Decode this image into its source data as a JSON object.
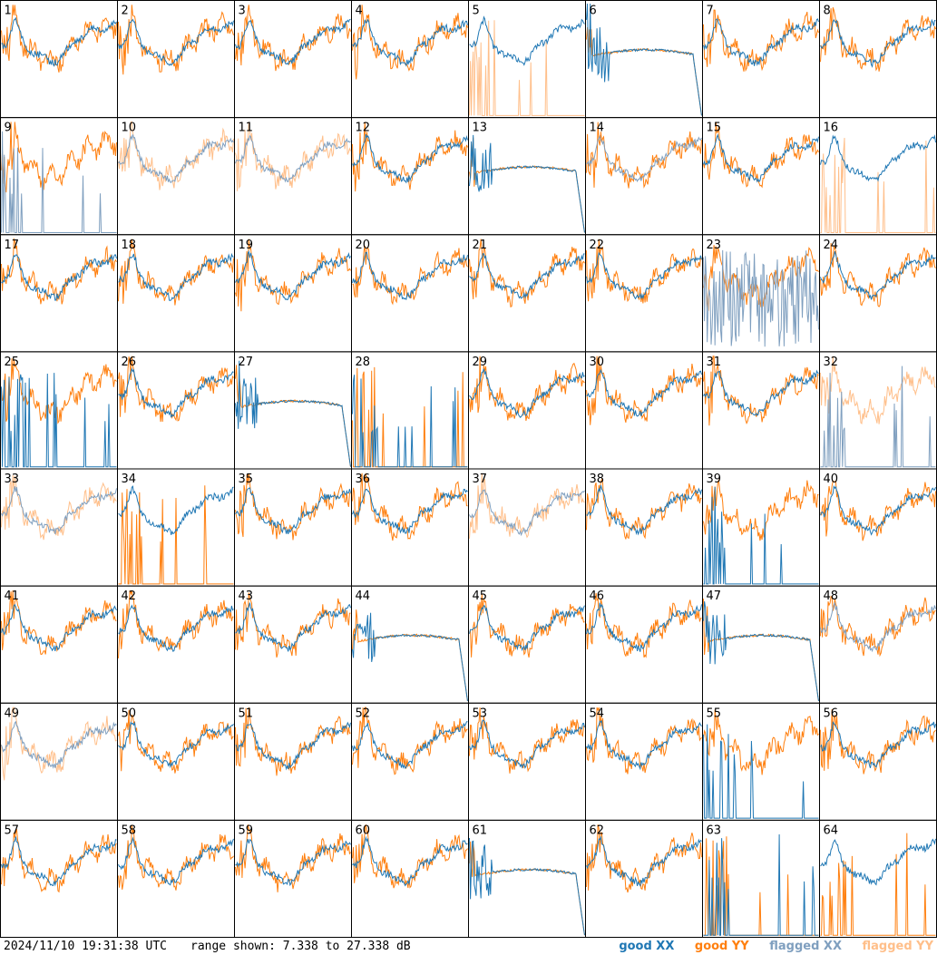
{
  "timestamp": "2024/11/10 19:31:38 UTC",
  "range_text": "range shown: 7.338 to 27.338 dB",
  "legend": [
    {
      "label": "good XX",
      "color": "#1f77b4"
    },
    {
      "label": "good YY",
      "color": "#ff7f0e"
    },
    {
      "label": "flagged XX",
      "color": "#7f9fbf"
    },
    {
      "label": "flagged YY",
      "color": "#ffbf8a"
    }
  ],
  "chart_data": {
    "type": "line",
    "grid": {
      "rows": 8,
      "cols": 8
    },
    "ylim": [
      7.338,
      27.338
    ],
    "panels": [
      {
        "id": "1",
        "xx": "good",
        "yy": "good",
        "shape": "wave"
      },
      {
        "id": "2",
        "xx": "good",
        "yy": "good",
        "shape": "wave"
      },
      {
        "id": "3",
        "xx": "good",
        "yy": "good",
        "shape": "wave"
      },
      {
        "id": "4",
        "xx": "good",
        "yy": "good",
        "shape": "wave"
      },
      {
        "id": "5",
        "xx": "good",
        "yy": "flagged",
        "shape": "wave",
        "yy_shape": "spikes"
      },
      {
        "id": "6",
        "xx": "good",
        "yy": "good",
        "shape": "bathtub"
      },
      {
        "id": "7",
        "xx": "good",
        "yy": "good",
        "shape": "wave"
      },
      {
        "id": "8",
        "xx": "good",
        "yy": "good",
        "shape": "wave"
      },
      {
        "id": "9",
        "xx": "flagged",
        "yy": "good",
        "shape": "wave",
        "xx_shape": "spikes"
      },
      {
        "id": "10",
        "xx": "flagged",
        "yy": "flagged",
        "shape": "wave"
      },
      {
        "id": "11",
        "xx": "flagged",
        "yy": "flagged",
        "shape": "wave"
      },
      {
        "id": "12",
        "xx": "good",
        "yy": "good",
        "shape": "wave"
      },
      {
        "id": "13",
        "xx": "good",
        "yy": "good",
        "shape": "bathtub"
      },
      {
        "id": "14",
        "xx": "flagged",
        "yy": "good",
        "shape": "wave"
      },
      {
        "id": "15",
        "xx": "good",
        "yy": "good",
        "shape": "wave"
      },
      {
        "id": "16",
        "xx": "good",
        "yy": "flagged",
        "shape": "wave",
        "yy_shape": "spikes"
      },
      {
        "id": "17",
        "xx": "good",
        "yy": "good",
        "shape": "wave"
      },
      {
        "id": "18",
        "xx": "good",
        "yy": "good",
        "shape": "wave"
      },
      {
        "id": "19",
        "xx": "good",
        "yy": "good",
        "shape": "wave"
      },
      {
        "id": "20",
        "xx": "good",
        "yy": "good",
        "shape": "wave"
      },
      {
        "id": "21",
        "xx": "good",
        "yy": "good",
        "shape": "wave"
      },
      {
        "id": "22",
        "xx": "good",
        "yy": "good",
        "shape": "wave"
      },
      {
        "id": "23",
        "xx": "flagged",
        "yy": "good",
        "shape": "wave",
        "xx_shape": "noise"
      },
      {
        "id": "24",
        "xx": "good",
        "yy": "good",
        "shape": "wave"
      },
      {
        "id": "25",
        "xx": "good",
        "yy": "good",
        "shape": "wave",
        "xx_shape": "spikes"
      },
      {
        "id": "26",
        "xx": "good",
        "yy": "good",
        "shape": "wave"
      },
      {
        "id": "27",
        "xx": "good",
        "yy": "good",
        "shape": "bathtub"
      },
      {
        "id": "28",
        "xx": "good",
        "yy": "good",
        "shape": "spikes"
      },
      {
        "id": "29",
        "xx": "good",
        "yy": "good",
        "shape": "wave"
      },
      {
        "id": "30",
        "xx": "good",
        "yy": "good",
        "shape": "wave"
      },
      {
        "id": "31",
        "xx": "good",
        "yy": "good",
        "shape": "wave"
      },
      {
        "id": "32",
        "xx": "flagged",
        "yy": "flagged",
        "shape": "wave",
        "xx_shape": "spikes"
      },
      {
        "id": "33",
        "xx": "flagged",
        "yy": "flagged",
        "shape": "wave"
      },
      {
        "id": "34",
        "xx": "good",
        "yy": "good",
        "shape": "wave",
        "yy_shape": "spikes"
      },
      {
        "id": "35",
        "xx": "good",
        "yy": "good",
        "shape": "wave"
      },
      {
        "id": "36",
        "xx": "good",
        "yy": "good",
        "shape": "wave"
      },
      {
        "id": "37",
        "xx": "flagged",
        "yy": "flagged",
        "shape": "wave"
      },
      {
        "id": "38",
        "xx": "good",
        "yy": "good",
        "shape": "wave"
      },
      {
        "id": "39",
        "xx": "good",
        "yy": "good",
        "shape": "wave",
        "xx_shape": "spikes"
      },
      {
        "id": "40",
        "xx": "good",
        "yy": "good",
        "shape": "wave"
      },
      {
        "id": "41",
        "xx": "good",
        "yy": "good",
        "shape": "wave"
      },
      {
        "id": "42",
        "xx": "good",
        "yy": "good",
        "shape": "wave"
      },
      {
        "id": "43",
        "xx": "good",
        "yy": "good",
        "shape": "wave"
      },
      {
        "id": "44",
        "xx": "good",
        "yy": "good",
        "shape": "bathtub"
      },
      {
        "id": "45",
        "xx": "good",
        "yy": "good",
        "shape": "wave"
      },
      {
        "id": "46",
        "xx": "good",
        "yy": "good",
        "shape": "wave"
      },
      {
        "id": "47",
        "xx": "good",
        "yy": "good",
        "shape": "bathtub"
      },
      {
        "id": "48",
        "xx": "flagged",
        "yy": "good",
        "shape": "wave"
      },
      {
        "id": "49",
        "xx": "flagged",
        "yy": "flagged",
        "shape": "wave"
      },
      {
        "id": "50",
        "xx": "good",
        "yy": "good",
        "shape": "wave"
      },
      {
        "id": "51",
        "xx": "good",
        "yy": "good",
        "shape": "wave"
      },
      {
        "id": "52",
        "xx": "good",
        "yy": "good",
        "shape": "wave"
      },
      {
        "id": "53",
        "xx": "good",
        "yy": "good",
        "shape": "wave"
      },
      {
        "id": "54",
        "xx": "good",
        "yy": "good",
        "shape": "wave"
      },
      {
        "id": "55",
        "xx": "good",
        "yy": "good",
        "shape": "wave",
        "xx_shape": "spikes"
      },
      {
        "id": "56",
        "xx": "good",
        "yy": "good",
        "shape": "wave"
      },
      {
        "id": "57",
        "xx": "good",
        "yy": "good",
        "shape": "wave"
      },
      {
        "id": "58",
        "xx": "good",
        "yy": "good",
        "shape": "wave"
      },
      {
        "id": "59",
        "xx": "good",
        "yy": "good",
        "shape": "wave"
      },
      {
        "id": "60",
        "xx": "good",
        "yy": "good",
        "shape": "wave"
      },
      {
        "id": "61",
        "xx": "good",
        "yy": "good",
        "shape": "bathtub"
      },
      {
        "id": "62",
        "xx": "good",
        "yy": "good",
        "shape": "wave"
      },
      {
        "id": "63",
        "xx": "good",
        "yy": "good",
        "shape": "spikes"
      },
      {
        "id": "64",
        "xx": "good",
        "yy": "good",
        "shape": "wave",
        "yy_shape": "spikes"
      }
    ]
  }
}
